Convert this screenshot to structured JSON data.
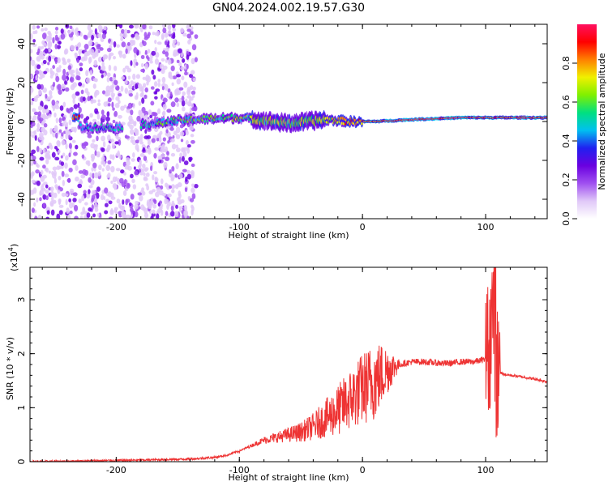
{
  "title": "GN04.2024.002.19.57.G30",
  "colors": {
    "snr_line": "#ee3333",
    "axes": "#000000",
    "colormap": [
      "#ffffff",
      "#e0c8f8",
      "#a050f0",
      "#6a00e0",
      "#2020f0",
      "#00c0f0",
      "#00e080",
      "#80f000",
      "#f0f000",
      "#ff8000",
      "#ff0000",
      "#ff1060"
    ]
  },
  "chart_data": [
    {
      "type": "heatmap",
      "title": "",
      "xlabel": "Height of straight line (km)",
      "ylabel": "Frequency (Hz)",
      "xlim": [
        -270,
        150
      ],
      "ylim": [
        -50,
        50
      ],
      "x_ticks": [
        "-200",
        "-100",
        "0",
        "100"
      ],
      "y_ticks": [
        "-40",
        "-20",
        "0",
        "20",
        "40"
      ],
      "colorbar": {
        "label": "Normalized spectral amplitude",
        "range": [
          0,
          1
        ],
        "ticks": [
          "0.0",
          "0.2",
          "0.4",
          "0.6",
          "0.8"
        ],
        "colormap": "rainbow"
      },
      "ridge": {
        "description_points": [
          {
            "x": -230,
            "freq": -3,
            "amp": 0.45
          },
          {
            "x": -200,
            "freq": -3,
            "amp": 0.45
          },
          {
            "x": -140,
            "freq": 1,
            "amp": 0.55
          },
          {
            "x": -100,
            "freq": 2,
            "amp": 0.6
          },
          {
            "x": -60,
            "freq": -1,
            "amp": 0.6
          },
          {
            "x": -30,
            "freq": 1,
            "amp": 0.65
          },
          {
            "x": -10,
            "freq": 0,
            "amp": 0.8
          },
          {
            "x": 10,
            "freq": 0,
            "amp": 0.85
          },
          {
            "x": 40,
            "freq": 1,
            "amp": 0.95
          },
          {
            "x": 80,
            "freq": 2,
            "amp": 0.95
          },
          {
            "x": 105,
            "freq": 2,
            "amp": 0.85
          },
          {
            "x": 150,
            "freq": 2,
            "amp": 0.9
          }
        ],
        "noise_region_x": [
          -270,
          -145
        ]
      }
    },
    {
      "type": "line",
      "title": "",
      "xlabel": "Height of straight line (km)",
      "ylabel": "SNR (10 * v/v)",
      "y_scale_label": "(x10^4)",
      "y_scale_base": "(x10",
      "y_scale_exp": "4",
      "xlim": [
        -270,
        150
      ],
      "ylim": [
        0,
        3.6
      ],
      "x_ticks": [
        "-200",
        "-100",
        "0",
        "100"
      ],
      "y_ticks": [
        "0",
        "1",
        "2",
        "3"
      ],
      "series": [
        {
          "x": [
            -270,
            -240,
            -210,
            -180,
            -160,
            -140,
            -120,
            -110,
            -100,
            -90,
            -80,
            -70,
            -60,
            -50,
            -40,
            -30,
            -20,
            -15,
            -10,
            -5,
            0,
            10,
            20,
            30,
            40,
            50,
            60,
            70,
            80,
            90,
            95,
            100,
            103,
            105,
            107,
            108,
            110,
            112,
            115,
            120,
            130,
            140,
            150
          ],
          "values": [
            0.0,
            0.01,
            0.02,
            0.03,
            0.04,
            0.05,
            0.08,
            0.12,
            0.2,
            0.3,
            0.4,
            0.45,
            0.5,
            0.55,
            0.65,
            0.8,
            0.95,
            1.05,
            1.15,
            1.25,
            1.35,
            1.5,
            1.7,
            1.8,
            1.85,
            1.85,
            1.83,
            1.82,
            1.85,
            1.85,
            1.87,
            1.9,
            2.2,
            2.5,
            3.3,
            1.5,
            1.7,
            1.65,
            1.62,
            1.6,
            1.57,
            1.53,
            1.48
          ]
        }
      ]
    }
  ]
}
